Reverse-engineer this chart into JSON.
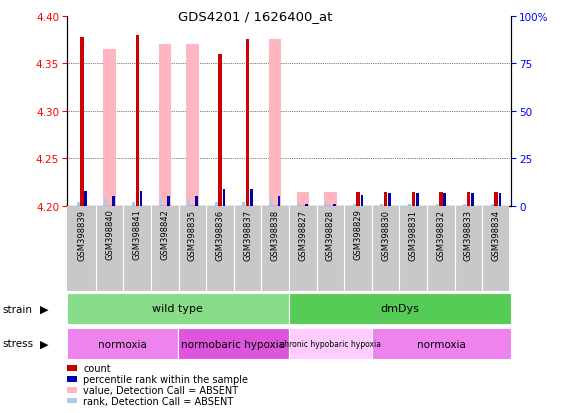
{
  "title": "GDS4201 / 1626400_at",
  "samples": [
    "GSM398839",
    "GSM398840",
    "GSM398841",
    "GSM398842",
    "GSM398835",
    "GSM398836",
    "GSM398837",
    "GSM398838",
    "GSM398827",
    "GSM398828",
    "GSM398829",
    "GSM398830",
    "GSM398831",
    "GSM398832",
    "GSM398833",
    "GSM398834"
  ],
  "red_values": [
    4.378,
    4.2,
    4.38,
    4.2,
    4.2,
    4.36,
    4.375,
    4.2,
    4.2,
    4.2,
    4.215,
    4.215,
    4.215,
    4.215,
    4.215,
    4.215
  ],
  "pink_values": [
    4.2,
    4.365,
    4.2,
    4.37,
    4.37,
    4.2,
    4.2,
    4.375,
    4.215,
    4.215,
    4.2,
    4.2,
    4.2,
    4.2,
    4.2,
    4.2
  ],
  "blue_pct": [
    8,
    5,
    8,
    5,
    5,
    9,
    9,
    5,
    1,
    1,
    6,
    7,
    7,
    7,
    7,
    7
  ],
  "lblue_pct": [
    2,
    4,
    2,
    4,
    4,
    2,
    2,
    4,
    2,
    2,
    1,
    1,
    1,
    1,
    1,
    1
  ],
  "y_min": 4.2,
  "y_max": 4.4,
  "y_ticks": [
    4.2,
    4.25,
    4.3,
    4.35,
    4.4
  ],
  "y2_ticks": [
    0,
    25,
    50,
    75,
    100
  ],
  "strain_groups": [
    {
      "label": "wild type",
      "start": 0,
      "end": 8,
      "color": "#88DD88"
    },
    {
      "label": "dmDys",
      "start": 8,
      "end": 16,
      "color": "#55CC55"
    }
  ],
  "stress_groups": [
    {
      "label": "normoxia",
      "start": 0,
      "end": 4,
      "color": "#EE82EE"
    },
    {
      "label": "normobaric hypoxia",
      "start": 4,
      "end": 8,
      "color": "#DD55DD"
    },
    {
      "label": "chronic hypobaric hypoxia",
      "start": 8,
      "end": 11,
      "color": "#FFCCFF"
    },
    {
      "label": "normoxia",
      "start": 11,
      "end": 16,
      "color": "#EE82EE"
    }
  ],
  "red_color": "#CC0000",
  "pink_color": "#FFB6C1",
  "blue_color": "#0000AA",
  "lblue_color": "#AACCEE",
  "plot_bg": "#FFFFFF",
  "label_bg": "#C8C8C8"
}
